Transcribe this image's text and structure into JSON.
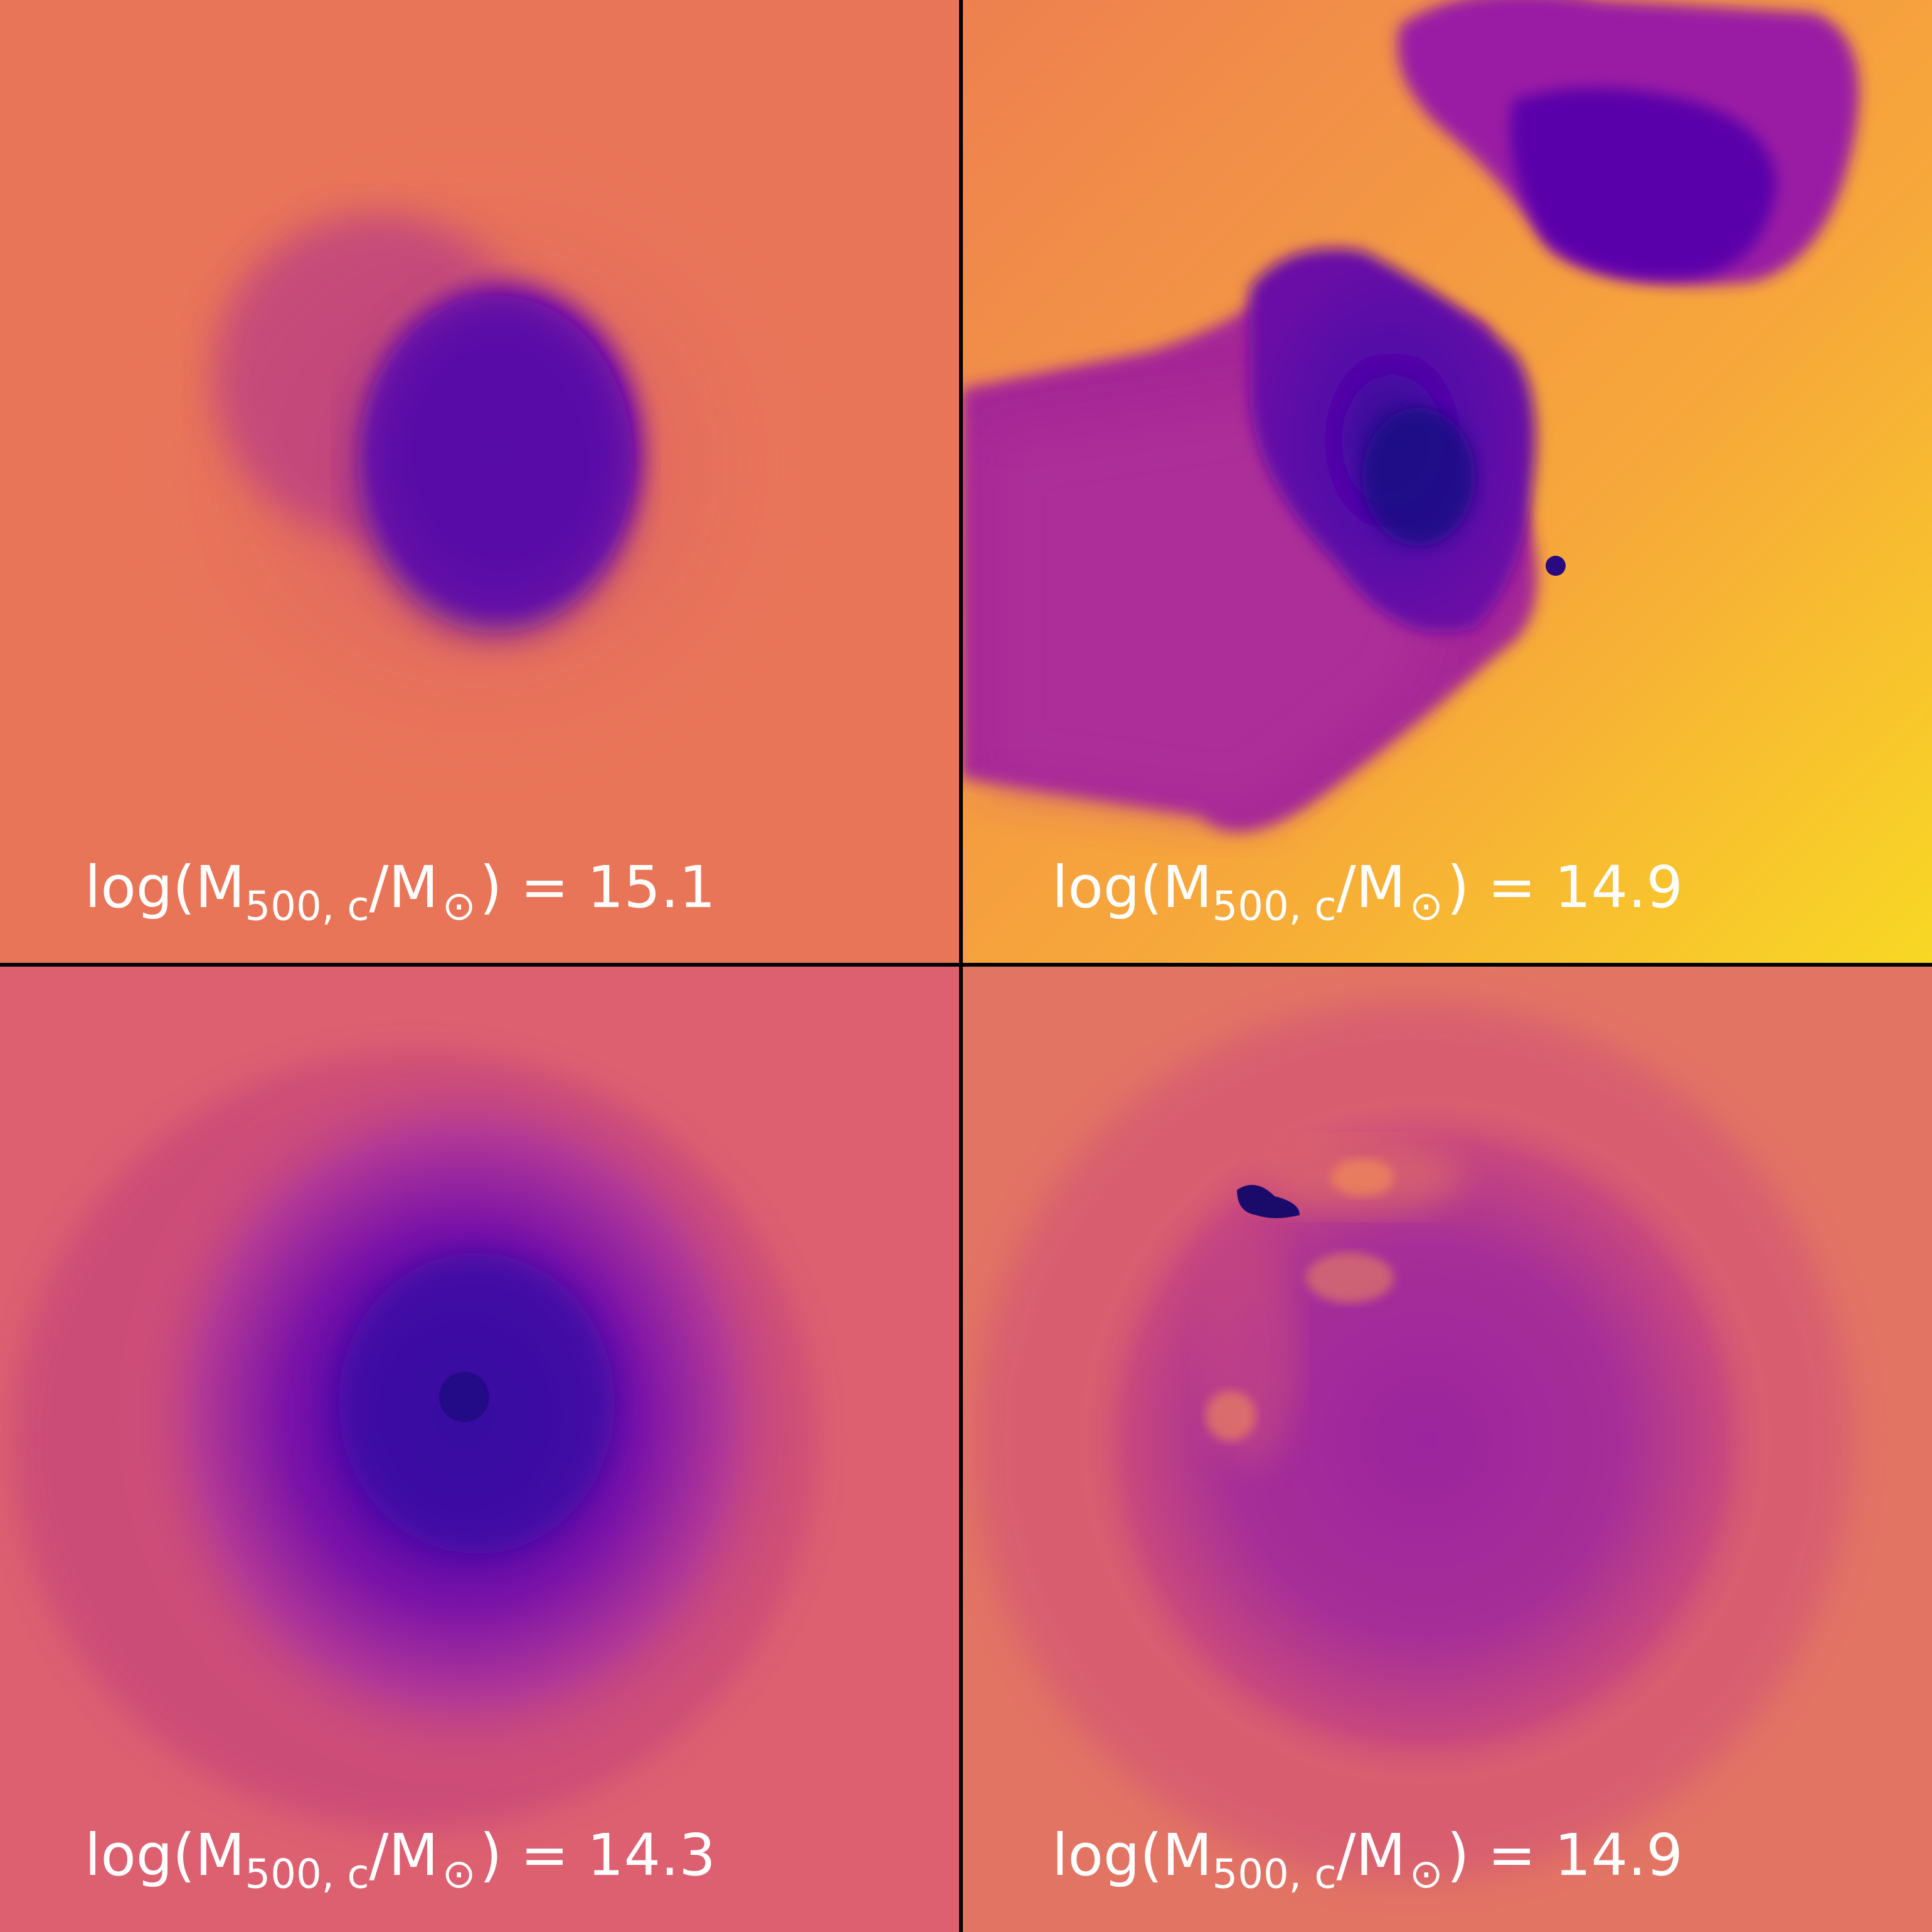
{
  "panels": [
    {
      "label_prefix": "log(M",
      "label_sub": "500, c",
      "label_mid": "/M",
      "label_sun": "⊙",
      "label_suffix": ") = 15.1",
      "background": "#e8705c"
    },
    {
      "label_prefix": "log(M",
      "label_sub": "500, c",
      "label_mid": "/M",
      "label_sun": "⊙",
      "label_suffix": ") = 14.9",
      "background": "#f6a03a"
    },
    {
      "label_prefix": "log(M",
      "label_sub": "500, c",
      "label_mid": "/M",
      "label_sun": "⊙",
      "label_suffix": ") = 14.3",
      "background": "#d9586e"
    },
    {
      "label_prefix": "log(M",
      "label_sub": "500, c",
      "label_mid": "/M",
      "label_sun": "⊙",
      "label_suffix": ") = 14.9",
      "background": "#dc6270"
    }
  ],
  "colors": {
    "core_dark": "#1a0a8a",
    "core_mid": "#5a06a6",
    "halo_purple": "#9b1ea2",
    "hot_yellow": "#f9d420",
    "divider": "#000000",
    "label": "#ffffff"
  }
}
